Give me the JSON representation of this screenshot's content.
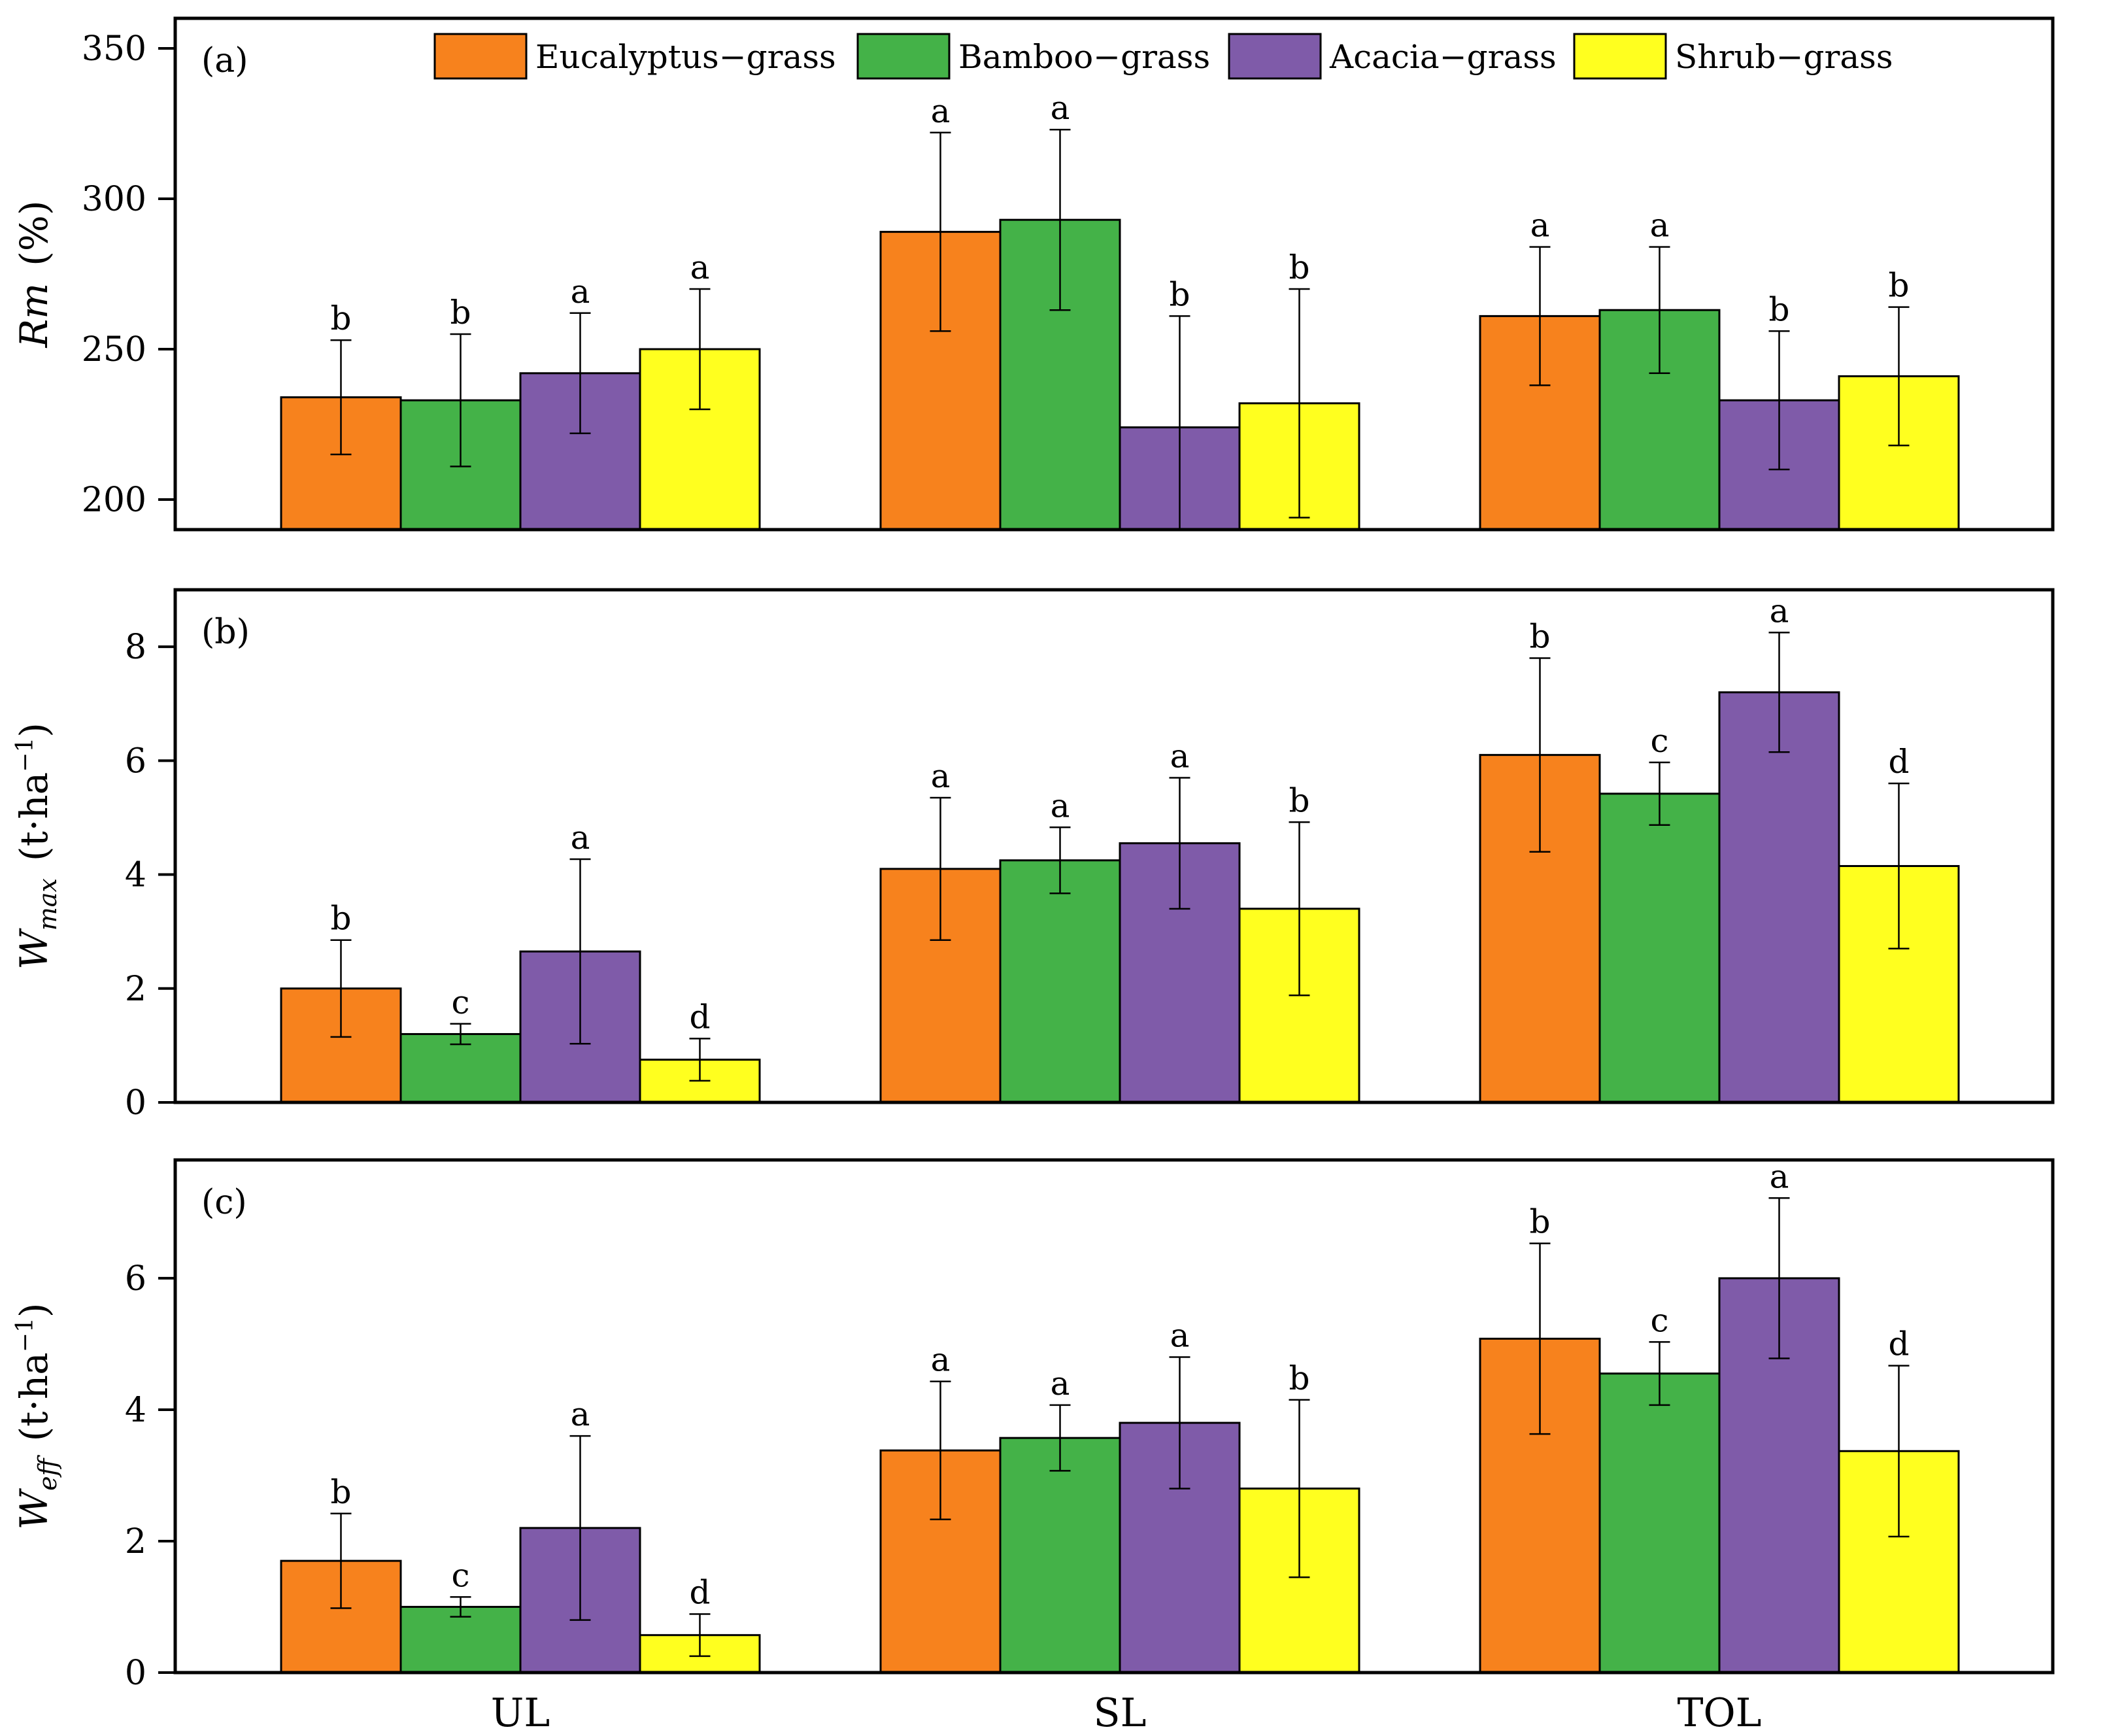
{
  "colors": {
    "Eucalyptus-grass": "#F7821D",
    "Bamboo-grass": "#44B248",
    "Acacia-grass": "#7F5BA9",
    "Shrub-grass": "#FFFF1F"
  },
  "chart_data": [
    {
      "type": "bar",
      "panel": "(a)",
      "ylabel": "Rm",
      "ylabel_unit": "(%)",
      "ylim": [
        190,
        360
      ],
      "yticks": [
        200,
        250,
        300,
        350
      ],
      "categories": [
        "UL",
        "SL",
        "TOL"
      ],
      "legend": [
        "Eucalyptus−grass",
        "Bamboo−grass",
        "Acacia−grass",
        "Shrub−grass"
      ],
      "series": [
        {
          "name": "Eucalyptus-grass",
          "values": [
            234,
            289,
            261
          ],
          "errors": [
            19,
            33,
            23
          ],
          "letters": [
            "b",
            "a",
            "a"
          ]
        },
        {
          "name": "Bamboo-grass",
          "values": [
            233,
            293,
            263
          ],
          "errors": [
            22,
            30,
            21
          ],
          "letters": [
            "b",
            "a",
            "a"
          ]
        },
        {
          "name": "Acacia-grass",
          "values": [
            242,
            224,
            233
          ],
          "errors": [
            20,
            37,
            23
          ],
          "letters": [
            "a",
            "b",
            "b"
          ]
        },
        {
          "name": "Shrub-grass",
          "values": [
            250,
            232,
            241
          ],
          "errors": [
            20,
            38,
            23
          ],
          "letters": [
            "a",
            "b",
            "b"
          ]
        }
      ]
    },
    {
      "type": "bar",
      "panel": "(b)",
      "ylabel": "W",
      "ylabel_sub": "max",
      "ylabel_unit": "(t·ha",
      "ylabel_sup": "−1",
      "ylabel_close": ")",
      "ylim": [
        0,
        9
      ],
      "yticks": [
        0,
        2,
        4,
        6,
        8
      ],
      "categories": [
        "UL",
        "SL",
        "TOL"
      ],
      "series": [
        {
          "name": "Eucalyptus-grass",
          "values": [
            2.0,
            4.1,
            6.1
          ],
          "errors": [
            0.85,
            1.25,
            1.7
          ],
          "letters": [
            "b",
            "a",
            "b"
          ]
        },
        {
          "name": "Bamboo-grass",
          "values": [
            1.2,
            4.25,
            5.42
          ],
          "errors": [
            0.18,
            0.58,
            0.55
          ],
          "letters": [
            "c",
            "a",
            "c"
          ]
        },
        {
          "name": "Acacia-grass",
          "values": [
            2.65,
            4.55,
            7.2
          ],
          "errors": [
            1.62,
            1.15,
            1.05
          ],
          "letters": [
            "a",
            "a",
            "a"
          ]
        },
        {
          "name": "Shrub-grass",
          "values": [
            0.75,
            3.4,
            4.15
          ],
          "errors": [
            0.37,
            1.52,
            1.45
          ],
          "letters": [
            "d",
            "b",
            "d"
          ]
        }
      ]
    },
    {
      "type": "bar",
      "panel": "(c)",
      "ylabel": "W",
      "ylabel_sub": "eff",
      "ylabel_unit": "(t·ha",
      "ylabel_sup": "−1",
      "ylabel_close": ")",
      "ylim": [
        0,
        7.8
      ],
      "yticks": [
        0,
        2,
        4,
        6
      ],
      "categories": [
        "UL",
        "SL",
        "TOL"
      ],
      "series": [
        {
          "name": "Eucalyptus-grass",
          "values": [
            1.7,
            3.38,
            5.08
          ],
          "errors": [
            0.72,
            1.05,
            1.45
          ],
          "letters": [
            "b",
            "a",
            "b"
          ]
        },
        {
          "name": "Bamboo-grass",
          "values": [
            1.0,
            3.57,
            4.55
          ],
          "errors": [
            0.15,
            0.5,
            0.48
          ],
          "letters": [
            "c",
            "a",
            "c"
          ]
        },
        {
          "name": "Acacia-grass",
          "values": [
            2.2,
            3.8,
            6.0
          ],
          "errors": [
            1.4,
            1.0,
            1.22
          ],
          "letters": [
            "a",
            "a",
            "a"
          ]
        },
        {
          "name": "Shrub-grass",
          "values": [
            0.57,
            2.8,
            3.37
          ],
          "errors": [
            0.32,
            1.35,
            1.3
          ],
          "letters": [
            "d",
            "b",
            "d"
          ]
        }
      ]
    }
  ]
}
